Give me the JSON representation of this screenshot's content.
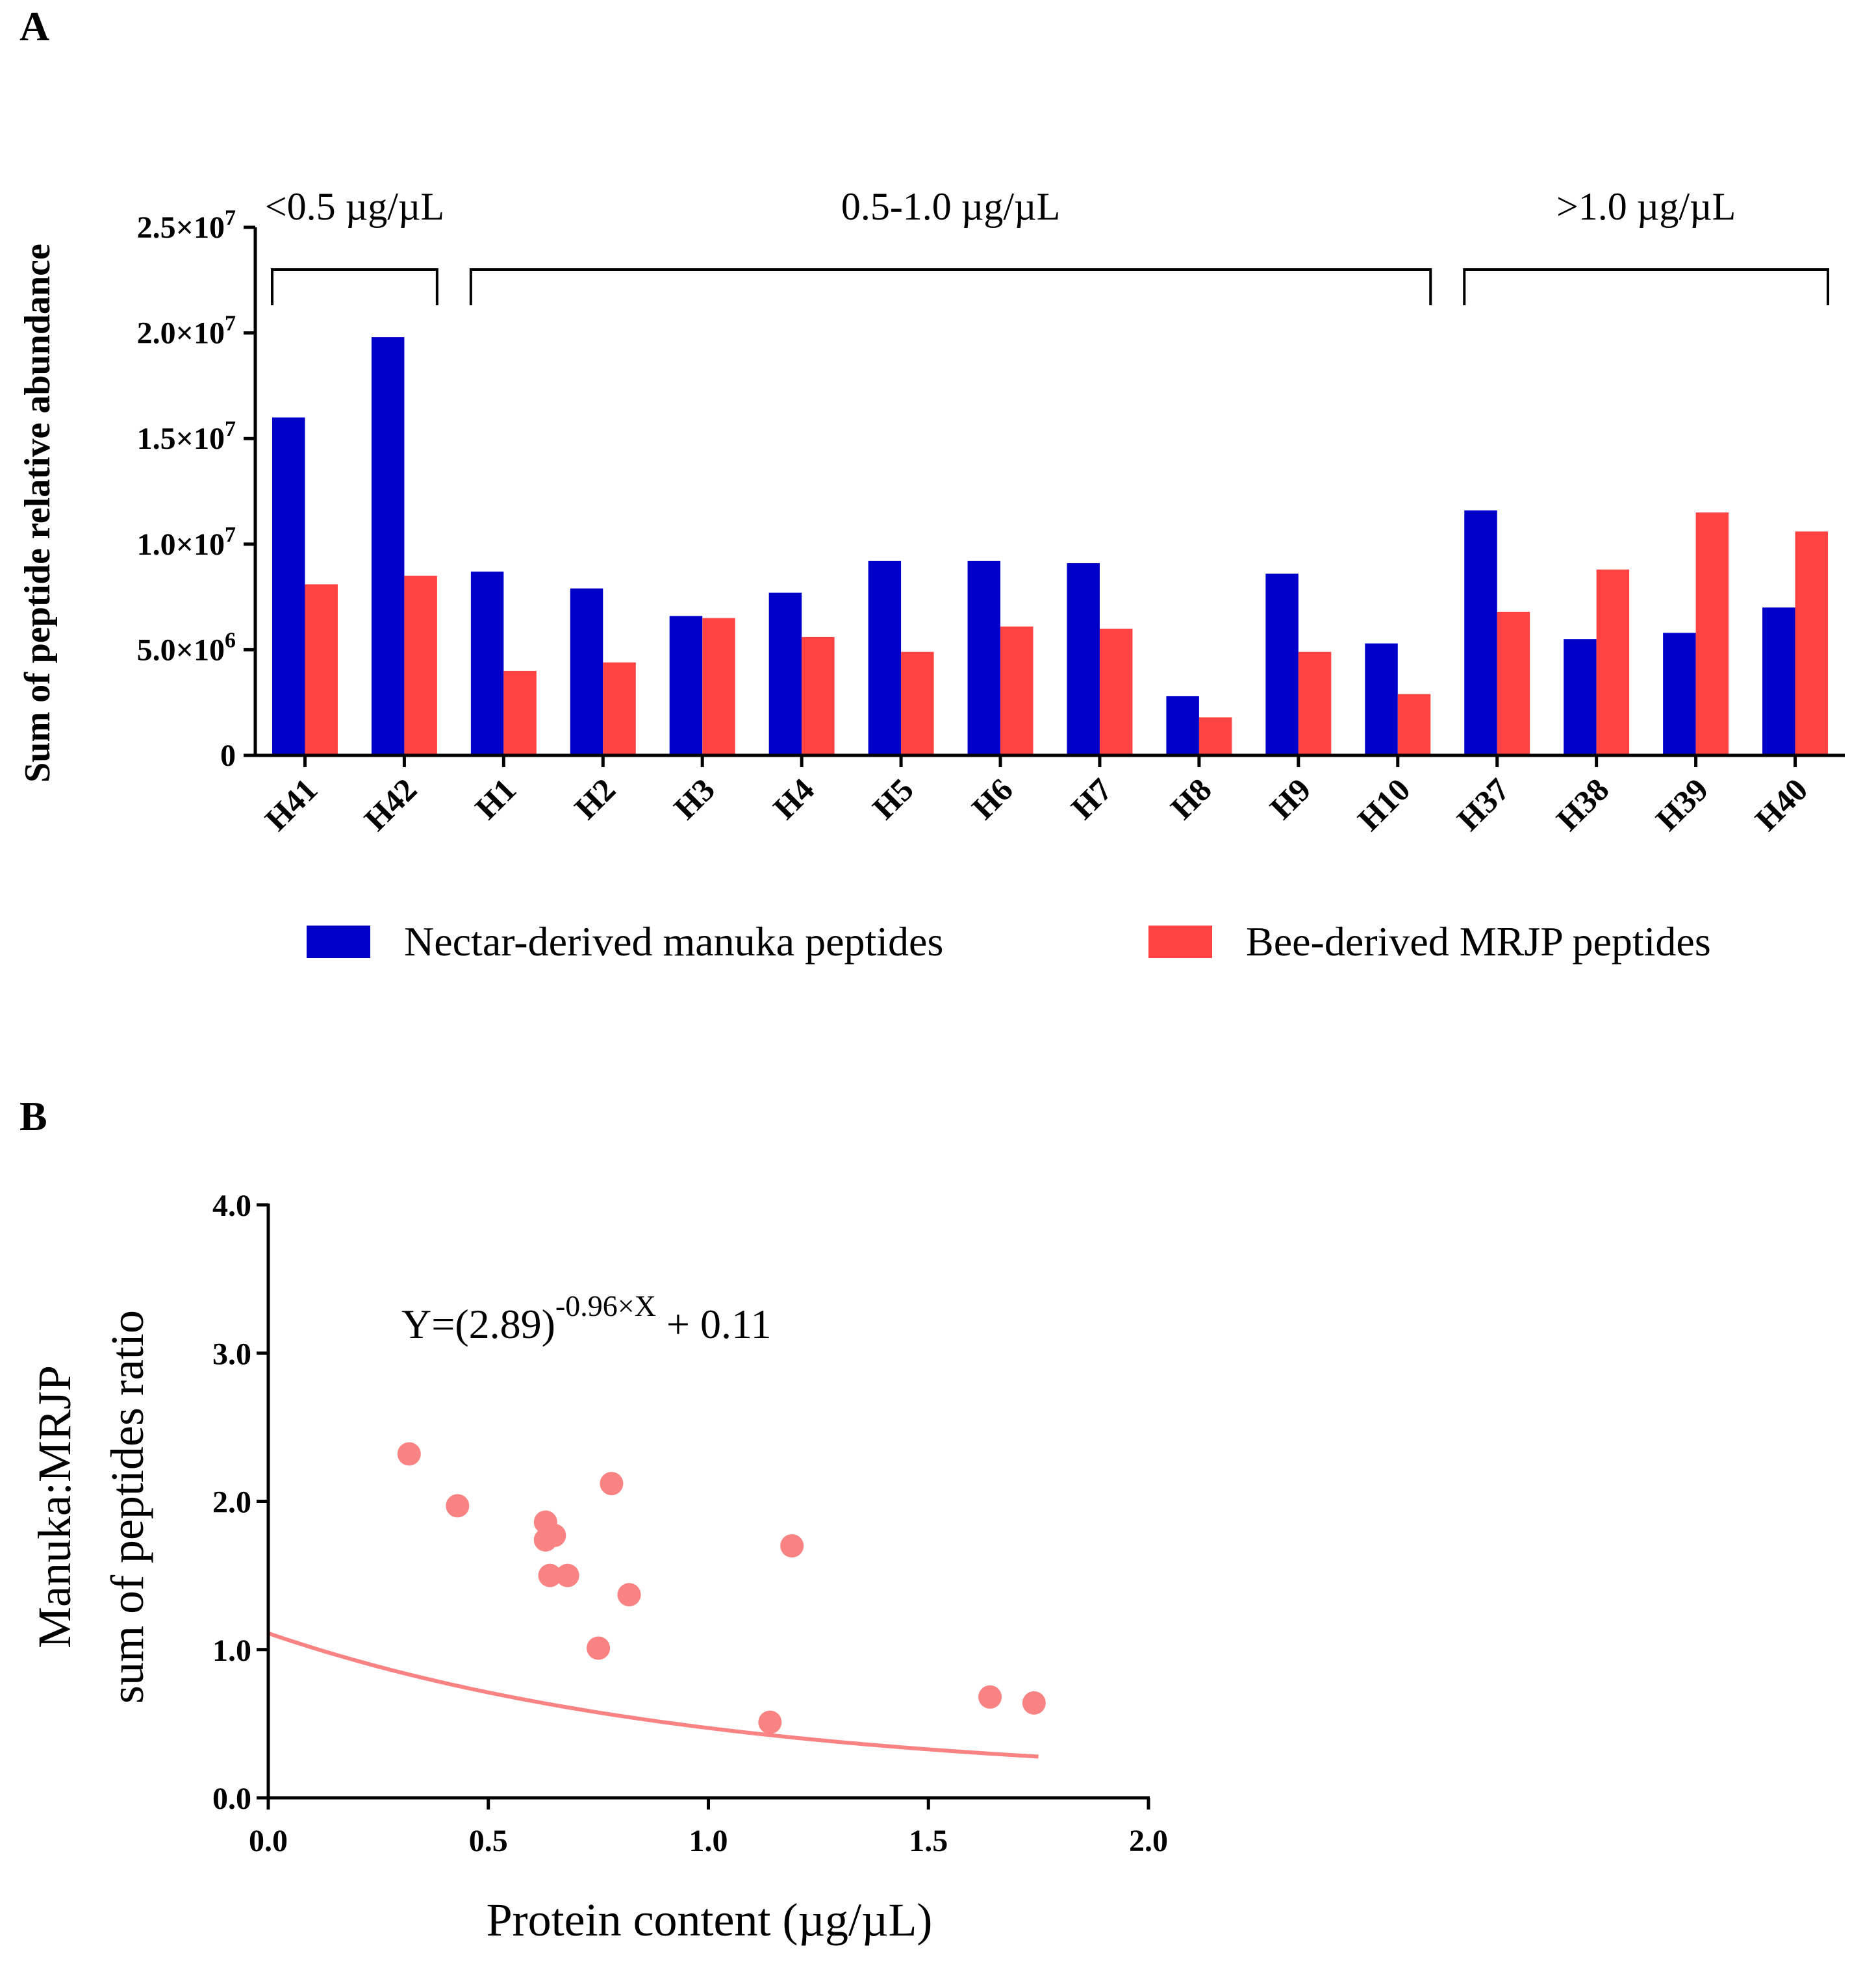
{
  "chart_data": [
    {
      "panel": "A",
      "type": "bar",
      "ylabel": "Sum of peptide relative abundance",
      "ylim": [
        0,
        25000000
      ],
      "yticks": [
        {
          "value": 0,
          "label": "0",
          "base": "0",
          "exp": ""
        },
        {
          "value": 5000000,
          "label": "5.0×10^6",
          "base": "5.0×10",
          "exp": "6"
        },
        {
          "value": 10000000,
          "label": "1.0×10^7",
          "base": "1.0×10",
          "exp": "7"
        },
        {
          "value": 15000000,
          "label": "1.5×10^7",
          "base": "1.5×10",
          "exp": "7"
        },
        {
          "value": 20000000,
          "label": "2.0×10^7",
          "base": "2.0×10",
          "exp": "7"
        },
        {
          "value": 25000000,
          "label": "2.5×10^7",
          "base": "2.5×10",
          "exp": "7"
        }
      ],
      "categories": [
        "H41",
        "H42",
        "H1",
        "H2",
        "H3",
        "H4",
        "H5",
        "H6",
        "H7",
        "H8",
        "H9",
        "H10",
        "H37",
        "H38",
        "H39",
        "H40"
      ],
      "series": [
        {
          "name": "Nectar-derived manuka peptides",
          "color": "#0000C8",
          "values": [
            16000000,
            19800000,
            8700000,
            7900000,
            6600000,
            7700000,
            9200000,
            9200000,
            9100000,
            2800000,
            8600000,
            5300000,
            11600000,
            5500000,
            5800000,
            7000000
          ]
        },
        {
          "name": "Bee-derived MRJP peptides",
          "color": "#FF4242",
          "values": [
            8100000,
            8500000,
            4000000,
            4400000,
            6500000,
            5600000,
            4900000,
            6100000,
            6000000,
            1800000,
            4900000,
            2900000,
            6800000,
            8800000,
            11500000,
            10600000
          ]
        }
      ],
      "groups": [
        {
          "label": "<0.5 µg/µL",
          "from": 0,
          "to": 1
        },
        {
          "label": "0.5-1.0 µg/µL",
          "from": 2,
          "to": 11
        },
        {
          "label": ">1.0 µg/µL",
          "from": 12,
          "to": 15
        }
      ],
      "legend": "bottom"
    },
    {
      "panel": "B",
      "type": "scatter",
      "xlabel": "Protein content (µg/µL)",
      "ylabel_line1": "Manuka:MRJP",
      "ylabel_line2": "sum of peptides ratio",
      "xlim": [
        0,
        2
      ],
      "ylim": [
        0,
        4
      ],
      "xticks": [
        "0.0",
        "0.5",
        "1.0",
        "1.5",
        "2.0"
      ],
      "yticks": [
        "0.0",
        "1.0",
        "2.0",
        "3.0",
        "4.0"
      ],
      "point_color": "#F98282",
      "points": [
        {
          "x": 0.32,
          "y": 2.32
        },
        {
          "x": 0.43,
          "y": 1.97
        },
        {
          "x": 0.63,
          "y": 1.86
        },
        {
          "x": 0.63,
          "y": 1.74
        },
        {
          "x": 0.65,
          "y": 1.77
        },
        {
          "x": 0.64,
          "y": 1.5
        },
        {
          "x": 0.68,
          "y": 1.5
        },
        {
          "x": 0.78,
          "y": 2.12
        },
        {
          "x": 0.82,
          "y": 1.37
        },
        {
          "x": 0.75,
          "y": 1.01
        },
        {
          "x": 1.19,
          "y": 1.7
        },
        {
          "x": 1.14,
          "y": 0.51
        },
        {
          "x": 1.64,
          "y": 0.68
        },
        {
          "x": 1.74,
          "y": 0.64
        }
      ],
      "fit": {
        "base": 2.89,
        "k": -0.96,
        "c": 0.11,
        "x_range": [
          0,
          1.75
        ]
      },
      "equation": {
        "lhs": "Y=(2.89)",
        "exp": "-0.96×X",
        "rhs": " + 0.11"
      }
    }
  ],
  "panel_labels": {
    "a": "A",
    "b": "B"
  }
}
